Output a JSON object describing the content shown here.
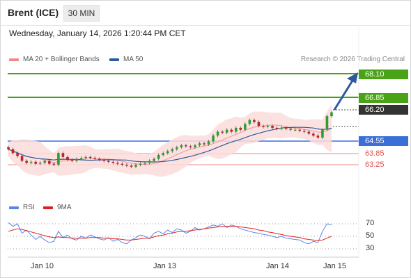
{
  "header": {
    "title": "Brent (ICE)",
    "timeframe": "30 MIN",
    "datetime": "Wednesday, January 14, 2026 1:20:44 PM CET"
  },
  "legend": {
    "items": [
      {
        "label": "MA 20 + Bollinger Bands",
        "color": "#f08a8a"
      },
      {
        "label": "MA 50",
        "color": "#2e5a9c"
      }
    ],
    "credit": "Research © 2026 Trading Central"
  },
  "levels": {
    "resistance_2": "68.10",
    "resistance_1": "66.85",
    "last_price": "66.20",
    "pivot": "64.55",
    "support_1": "63.85",
    "support_2": "63.25"
  },
  "rsi_panel": {
    "legend": [
      {
        "label": "RSI",
        "color": "#5b86e5"
      },
      {
        "label": "9MA",
        "color": "#e02020"
      }
    ],
    "ticks": [
      "70",
      "50",
      "30"
    ]
  },
  "x_axis": {
    "dates": [
      "Jan 10",
      "Jan 13",
      "Jan 14",
      "Jan 15"
    ]
  },
  "colors": {
    "resistance": "#4aa316",
    "pivot": "#3a6fd8",
    "support": "#e06666",
    "last_price": "#333333",
    "arrow": "#2e5a9c",
    "candle_up": "#2f9e2f",
    "candle_down": "#c02020"
  },
  "chart_data": {
    "type": "candlestick",
    "title": "Brent (ICE)",
    "timeframe": "30 MIN",
    "ylim": [
      62.5,
      68.4
    ],
    "x_ticks": [
      "Jan 10",
      "Jan 13",
      "Jan 14",
      "Jan 15"
    ],
    "levels": [
      68.1,
      66.85,
      66.2,
      64.55,
      63.85,
      63.25
    ],
    "close_series": [
      64.3,
      64.1,
      63.95,
      63.7,
      63.6,
      63.65,
      63.55,
      63.6,
      63.7,
      63.55,
      63.5,
      64.1,
      63.9,
      63.75,
      63.7,
      63.8,
      63.85,
      63.9,
      63.85,
      63.8,
      63.75,
      63.7,
      63.65,
      63.6,
      63.55,
      63.5,
      63.45,
      63.4,
      63.5,
      63.55,
      63.6,
      63.7,
      63.8,
      64.0,
      64.1,
      64.2,
      64.3,
      64.4,
      64.5,
      64.45,
      64.4,
      64.5,
      64.6,
      64.55,
      64.7,
      65.0,
      65.2,
      65.15,
      65.3,
      65.2,
      65.4,
      65.3,
      65.6,
      65.8,
      65.7,
      65.5,
      65.45,
      65.5,
      65.4,
      65.35,
      65.4,
      65.35,
      65.3,
      65.3,
      65.25,
      65.2,
      65.1,
      65.0,
      64.9,
      65.3,
      66.0,
      66.2
    ],
    "rsi": {
      "series": [
        "RSI",
        "9MA"
      ],
      "ylim": [
        20,
        80
      ],
      "ticks": [
        70,
        50,
        30
      ],
      "rsi_values": [
        72,
        66,
        70,
        55,
        60,
        52,
        45,
        50,
        44,
        40,
        42,
        58,
        48,
        52,
        46,
        44,
        50,
        47,
        52,
        49,
        46,
        44,
        48,
        42,
        45,
        40,
        38,
        44,
        48,
        52,
        50,
        46,
        55,
        58,
        54,
        60,
        56,
        62,
        60,
        55,
        58,
        64,
        60,
        62,
        65,
        68,
        66,
        70,
        64,
        68,
        66,
        62,
        60,
        58,
        56,
        55,
        53,
        52,
        50,
        48,
        50,
        47,
        46,
        45,
        44,
        40,
        38,
        42,
        40,
        58,
        70,
        68
      ],
      "ma_values": [
        58,
        60,
        62,
        61,
        59,
        57,
        55,
        53,
        51,
        49,
        48,
        49,
        48,
        48,
        47,
        47,
        47,
        47,
        48,
        48,
        48,
        47,
        47,
        46,
        46,
        45,
        44,
        44,
        45,
        46,
        47,
        47,
        49,
        51,
        52,
        54,
        55,
        57,
        58,
        58,
        59,
        60,
        61,
        62,
        63,
        64,
        65,
        66,
        66,
        66,
        66,
        65,
        64,
        63,
        62,
        60,
        59,
        57,
        56,
        54,
        53,
        51,
        50,
        49,
        48,
        46,
        45,
        44,
        43,
        44,
        47,
        50
      ]
    }
  }
}
